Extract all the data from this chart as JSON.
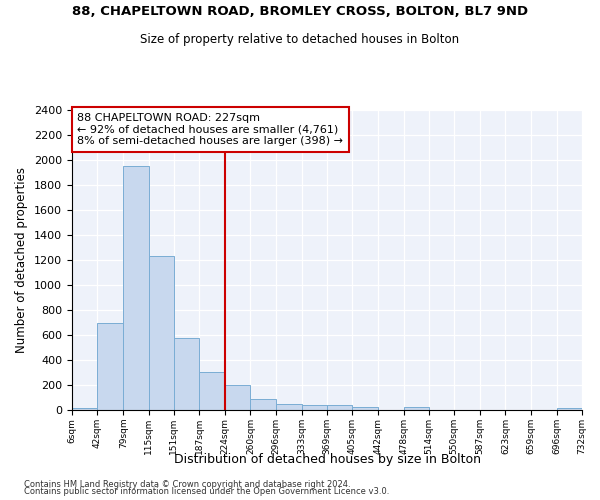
{
  "title": "88, CHAPELTOWN ROAD, BROMLEY CROSS, BOLTON, BL7 9ND",
  "subtitle": "Size of property relative to detached houses in Bolton",
  "xlabel": "Distribution of detached houses by size in Bolton",
  "ylabel": "Number of detached properties",
  "bar_color": "#c8d8ee",
  "bar_edge_color": "#7aadd4",
  "vline_x": 224,
  "vline_color": "#cc0000",
  "annotation_line1": "88 CHAPELTOWN ROAD: 227sqm",
  "annotation_line2": "← 92% of detached houses are smaller (4,761)",
  "annotation_line3": "8% of semi-detached houses are larger (398) →",
  "footer1": "Contains HM Land Registry data © Crown copyright and database right 2024.",
  "footer2": "Contains public sector information licensed under the Open Government Licence v3.0.",
  "bin_edges": [
    6,
    42,
    79,
    115,
    151,
    187,
    224,
    260,
    296,
    333,
    369,
    405,
    442,
    478,
    514,
    550,
    587,
    623,
    659,
    696,
    732
  ],
  "bar_heights": [
    15,
    700,
    1950,
    1230,
    575,
    305,
    200,
    85,
    48,
    38,
    38,
    25,
    0,
    25,
    0,
    0,
    0,
    0,
    0,
    20
  ],
  "ylim": [
    0,
    2400
  ],
  "yticks": [
    0,
    200,
    400,
    600,
    800,
    1000,
    1200,
    1400,
    1600,
    1800,
    2000,
    2200,
    2400
  ],
  "background_color": "#eef2fa"
}
